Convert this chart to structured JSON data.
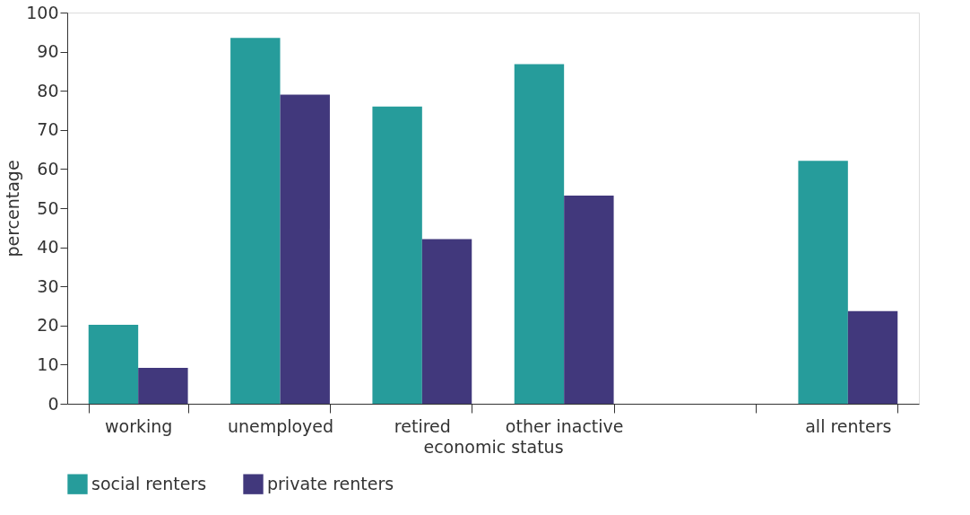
{
  "chart_data": {
    "type": "bar",
    "xlabel": "economic status",
    "ylabel": "percentage",
    "categories": [
      "working",
      "unemployed",
      "retired",
      "other inactive",
      null,
      "all renters"
    ],
    "series": [
      {
        "name": "social renters",
        "color": "#269c9b",
        "values": [
          20.2,
          93.5,
          76.0,
          86.8,
          null,
          62.1
        ]
      },
      {
        "name": "private renters",
        "color": "#41387c",
        "values": [
          9.2,
          79.0,
          42.1,
          53.2,
          null,
          23.7
        ]
      }
    ],
    "ylim": [
      0,
      100
    ],
    "yticks": [
      0,
      10,
      20,
      30,
      40,
      50,
      60,
      70,
      80,
      90,
      100
    ],
    "grid": false,
    "legend": "bottom left"
  }
}
